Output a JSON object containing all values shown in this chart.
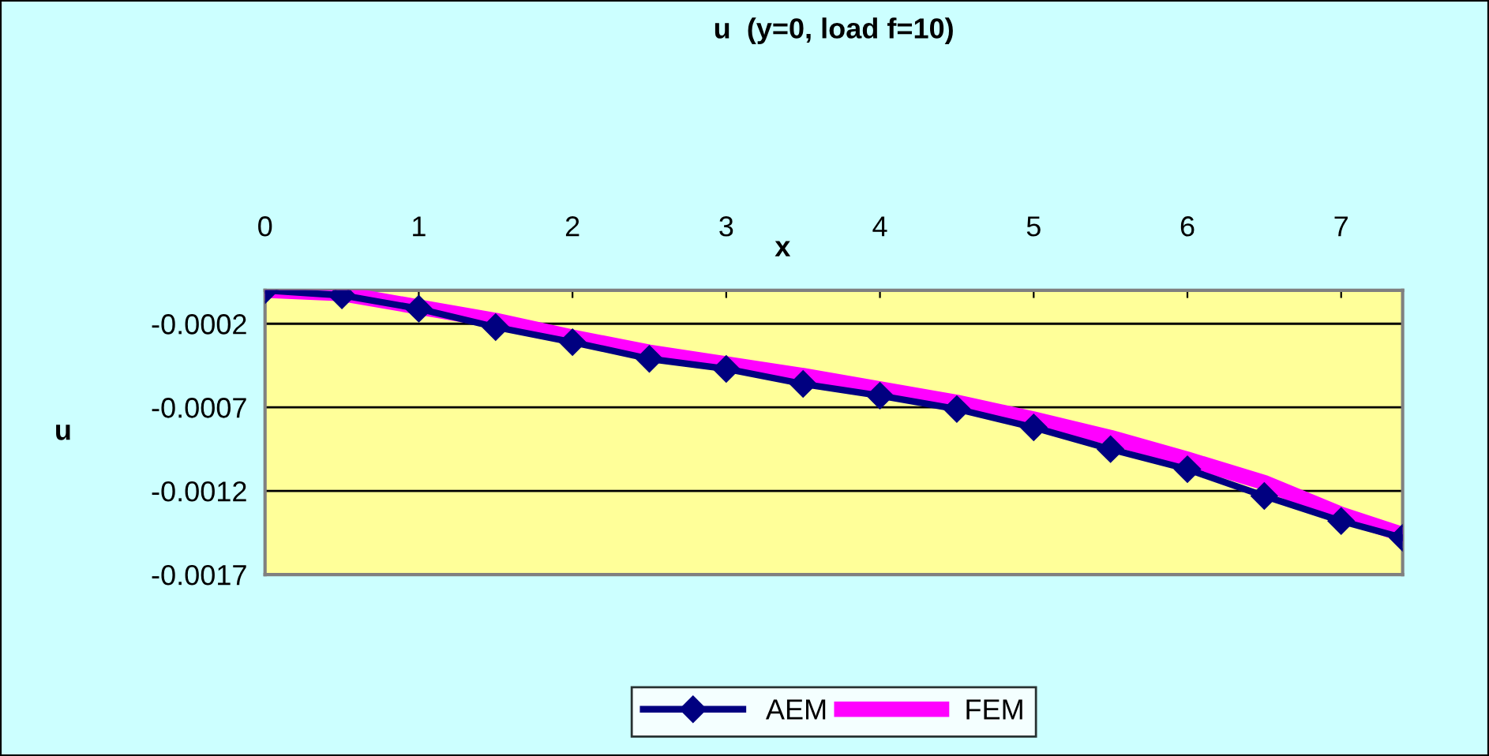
{
  "chart_data": {
    "type": "line",
    "title": "u  (y=0, load f=10)",
    "xlabel": "x",
    "ylabel": "u",
    "x": [
      0,
      0.5,
      1,
      1.5,
      2,
      2.5,
      3,
      3.5,
      4,
      4.5,
      5,
      5.5,
      6,
      6.5,
      7,
      7.4
    ],
    "series": [
      {
        "name": "AEM",
        "color": "#000080",
        "marker": "diamond",
        "values": [
          0,
          -3e-05,
          -0.00011,
          -0.00022,
          -0.00031,
          -0.00041,
          -0.00047,
          -0.00056,
          -0.00063,
          -0.00071,
          -0.00082,
          -0.00095,
          -0.00107,
          -0.00123,
          -0.00138,
          -0.00148
        ]
      },
      {
        "name": "FEM",
        "color": "#ff00ff",
        "marker": "none",
        "values": [
          0,
          -2e-05,
          -0.0001,
          -0.00018,
          -0.00028,
          -0.00037,
          -0.00044,
          -0.00051,
          -0.00059,
          -0.00067,
          -0.00077,
          -0.00088,
          -0.00101,
          -0.00115,
          -0.00134,
          -0.00146
        ]
      }
    ],
    "xlim": [
      0,
      7.4
    ],
    "xticks": [
      0,
      1,
      2,
      3,
      4,
      5,
      6,
      7
    ],
    "ylim": [
      -0.0017,
      0
    ],
    "yticks": [
      -0.0002,
      -0.0007,
      -0.0012,
      -0.0017
    ],
    "grid": "y",
    "legend": "bottom",
    "line_style": "solid"
  }
}
